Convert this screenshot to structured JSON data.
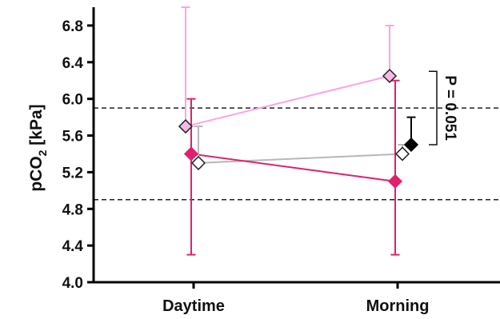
{
  "chart_data": {
    "type": "scatter",
    "title": "",
    "xlabel": "",
    "ylabel": {
      "main": "pCO",
      "sub": "2",
      "rest": " [kPa]"
    },
    "categories": [
      "Daytime",
      "Morning"
    ],
    "ylim": [
      4.0,
      7.0
    ],
    "yticks": [
      4.0,
      4.4,
      4.8,
      5.2,
      5.6,
      6.0,
      6.4,
      6.8
    ],
    "ytick_labels": [
      "4.0",
      "4.4",
      "4.8",
      "5.2",
      "5.6",
      "6.0",
      "6.4",
      "6.8"
    ],
    "reference_lines": [
      5.9,
      4.9
    ],
    "grid": false,
    "series": [
      {
        "color": "#ffa3e0",
        "fill": "#f6b9e6",
        "marker": "diamond",
        "mean": [
          5.7,
          6.25
        ],
        "error_upper": [
          7.0,
          6.8
        ],
        "error_lower": [
          null,
          null
        ]
      },
      {
        "color": "#b8b8b8",
        "fill": "#ffffff",
        "marker": "diamond",
        "mean": [
          5.3,
          5.4
        ],
        "error_upper": [
          5.7,
          5.5
        ],
        "error_lower": [
          null,
          null
        ]
      },
      {
        "color": "#e0206e",
        "fill": "#e0206e",
        "marker": "diamond",
        "mean": [
          5.4,
          5.1
        ],
        "error_upper": [
          6.0,
          6.2
        ],
        "error_lower": [
          4.3,
          4.3
        ]
      },
      {
        "color": "#000000",
        "fill": "#000000",
        "marker": "diamond",
        "mean": [
          null,
          5.5
        ],
        "error_upper": [
          null,
          5.8
        ],
        "error_lower": [
          null,
          null
        ]
      }
    ],
    "annotation": {
      "text": "P = 0.051",
      "bracket_from": 5.5,
      "bracket_to": 6.3
    }
  }
}
